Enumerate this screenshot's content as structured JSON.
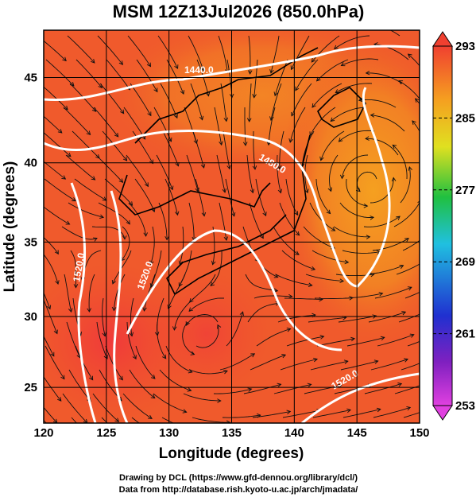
{
  "title": "MSM 12Z13Jul2026 (850.0hPa)",
  "x_axis": {
    "label": "Longitude (degrees)",
    "lim": [
      120,
      150
    ],
    "ticks": [
      120,
      125,
      130,
      135,
      140,
      145,
      150
    ]
  },
  "y_axis": {
    "label": "Latitude  (degrees)",
    "lim": [
      22.4,
      47.6
    ],
    "ticks": [
      25,
      30,
      35,
      40,
      45
    ],
    "projection": "mercator"
  },
  "colorbar": {
    "lim": [
      253,
      293
    ],
    "ticks": [
      253,
      261,
      269,
      277,
      285,
      293
    ]
  },
  "contour_labels": [
    "1440.0",
    "1480.0",
    "1520.0",
    "1520.0",
    "1520.0"
  ],
  "footer": [
    "Drawing by DCL (https://www.gfd-dennou.org/library/dcl/)",
    "Data from http://database.rish.kyoto-u.ac.jp/arch/jmadata/"
  ]
}
